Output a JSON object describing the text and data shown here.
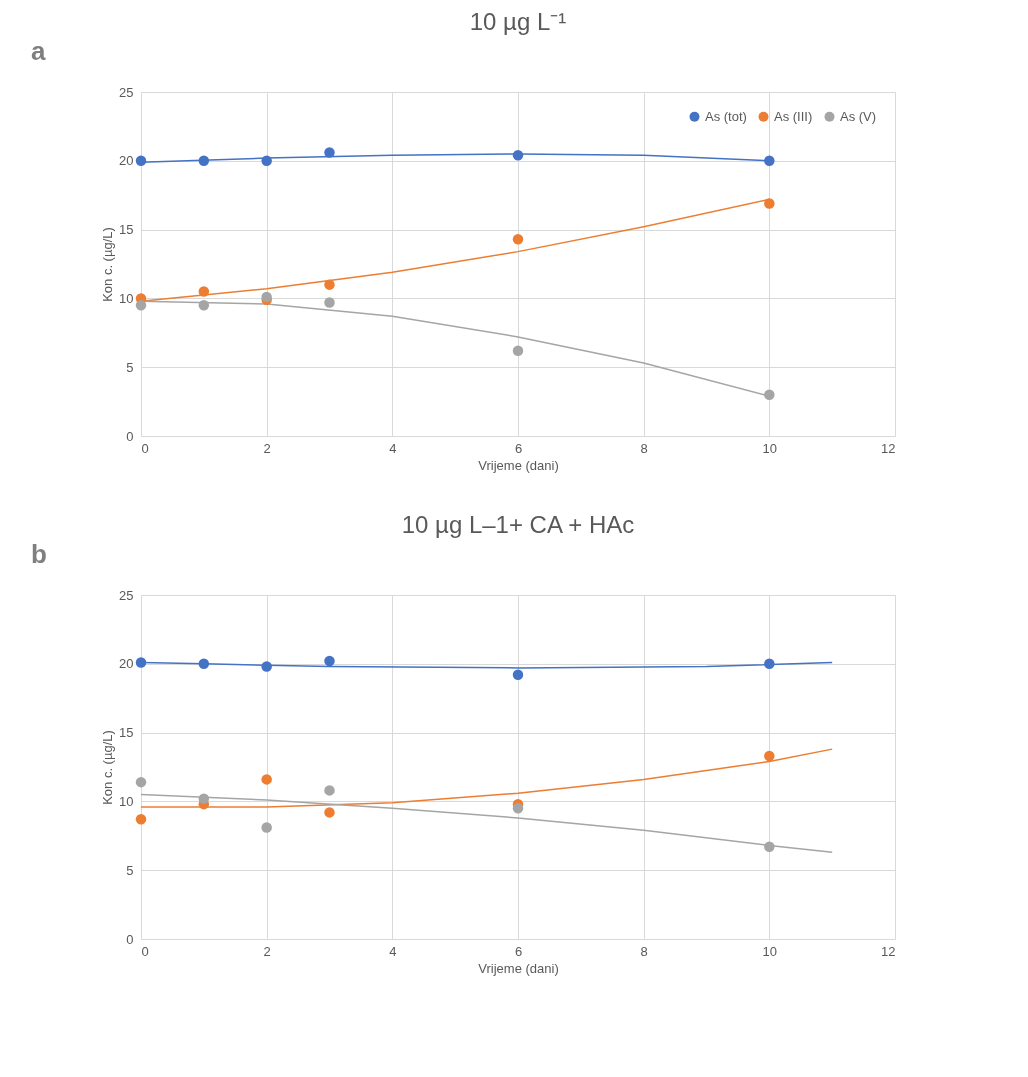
{
  "chart_data": [
    {
      "type": "scatter",
      "title": "10 µg L⁻¹",
      "xlabel": "Vrijeme (dani)",
      "ylabel": "Kon c. (µg/L)",
      "annotations": [
        "a"
      ],
      "xlim": [
        0,
        12
      ],
      "xticks": [
        0,
        2,
        4,
        6,
        8,
        10,
        12
      ],
      "ylim": [
        0,
        25
      ],
      "yticks": [
        0,
        5,
        10,
        15,
        20,
        25
      ],
      "grid": true,
      "legend": "top right",
      "marker": "circle",
      "series": [
        {
          "name": "As (tot)",
          "color": "#4472c4",
          "x": [
            0,
            1,
            2,
            3,
            6,
            10
          ],
          "values": [
            20.0,
            20.0,
            20.0,
            20.6,
            20.4,
            20.0
          ]
        },
        {
          "name": "As (III)",
          "color": "#ed7d31",
          "x": [
            0,
            1,
            2,
            3,
            6,
            10
          ],
          "values": [
            10.0,
            10.5,
            9.9,
            11.0,
            14.3,
            16.9
          ]
        },
        {
          "name": "As (V)",
          "color": "#a5a5a5",
          "x": [
            0,
            1,
            2,
            3,
            6,
            10
          ],
          "values": [
            9.5,
            9.5,
            10.1,
            9.7,
            6.2,
            3.0
          ]
        },
        {
          "type": "line",
          "marker": "none",
          "color": "#4472c4",
          "x": [
            0,
            2,
            4,
            6,
            8,
            10
          ],
          "values": [
            19.9,
            20.2,
            20.4,
            20.5,
            20.4,
            20.0
          ]
        },
        {
          "type": "line",
          "marker": "none",
          "color": "#ed7d31",
          "x": [
            0,
            2,
            4,
            6,
            8,
            10
          ],
          "values": [
            9.8,
            10.7,
            11.9,
            13.4,
            15.2,
            17.2
          ]
        },
        {
          "type": "line",
          "marker": "none",
          "color": "#a5a5a5",
          "x": [
            0,
            2,
            4,
            6,
            8,
            10
          ],
          "values": [
            9.8,
            9.6,
            8.7,
            7.2,
            5.3,
            2.9
          ]
        }
      ]
    },
    {
      "type": "scatter",
      "title": "10 µg L–1+ CA + HAc",
      "xlabel": "Vrijeme (dani)",
      "ylabel": "Kon c. (µg/L)",
      "annotations": [
        "b"
      ],
      "xlim": [
        0,
        12
      ],
      "xticks": [
        0,
        2,
        4,
        6,
        8,
        10,
        12
      ],
      "ylim": [
        0,
        25
      ],
      "yticks": [
        0,
        5,
        10,
        15,
        20,
        25
      ],
      "grid": true,
      "legend": "top right",
      "marker": "circle",
      "series": [
        {
          "name": "As (tot)",
          "color": "#4472c4",
          "x": [
            0,
            1,
            2,
            3,
            6,
            10
          ],
          "values": [
            20.1,
            20.0,
            19.8,
            20.2,
            19.2,
            20.0
          ]
        },
        {
          "name": "As (III)",
          "color": "#ed7d31",
          "x": [
            0,
            1,
            2,
            3,
            6,
            10
          ],
          "values": [
            8.7,
            9.8,
            11.6,
            9.2,
            9.8,
            13.3
          ]
        },
        {
          "name": "As (V)",
          "color": "#a5a5a5",
          "x": [
            0,
            1,
            2,
            3,
            6,
            10
          ],
          "values": [
            11.4,
            10.2,
            8.1,
            10.8,
            9.5,
            6.7
          ]
        },
        {
          "type": "line",
          "marker": "none",
          "color": "#4472c4",
          "x": [
            0,
            1,
            3,
            6,
            9,
            11
          ],
          "values": [
            20.1,
            20.0,
            19.8,
            19.7,
            19.8,
            20.1
          ]
        },
        {
          "type": "line",
          "marker": "none",
          "color": "#ed7d31",
          "x": [
            0,
            2,
            4,
            6,
            8,
            10,
            11
          ],
          "values": [
            9.6,
            9.6,
            9.9,
            10.6,
            11.6,
            12.9,
            13.8
          ]
        },
        {
          "type": "line",
          "marker": "none",
          "color": "#a5a5a5",
          "x": [
            0,
            2,
            4,
            6,
            8,
            10,
            11
          ],
          "values": [
            10.5,
            10.1,
            9.5,
            8.8,
            7.9,
            6.8,
            6.3
          ]
        }
      ]
    }
  ]
}
